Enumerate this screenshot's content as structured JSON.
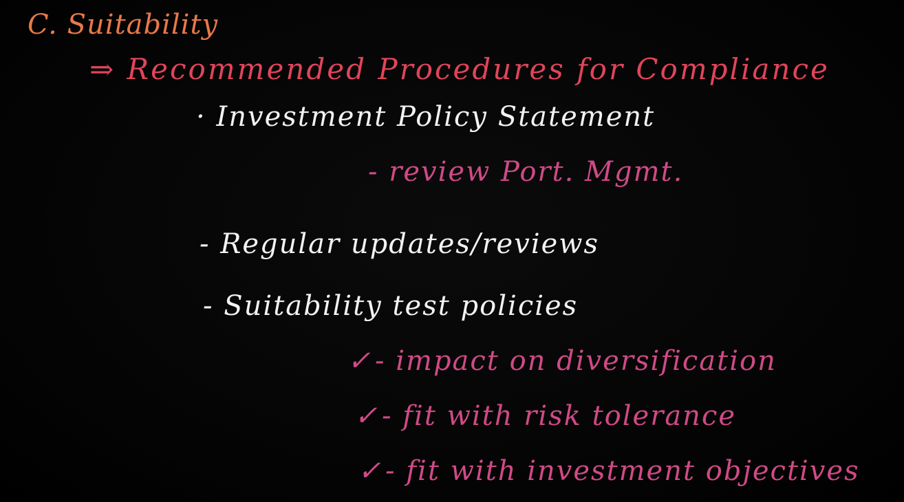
{
  "heading": "C. Suitability",
  "subheading": "⇒ Recommended Procedures for Compliance",
  "items": {
    "ips": "· Investment Policy Statement",
    "ips_sub": "- review Port. Mgmt.",
    "regular": "- Regular updates/reviews",
    "suitability": "- Suitability test policies"
  },
  "sub_items": {
    "check": "✓",
    "diversification": "- impact on diversification",
    "risk": "- fit with risk tolerance",
    "objectives": "- fit with investment objectives"
  },
  "colors": {
    "background": "#050505",
    "heading": "#e8794a",
    "subheading": "#e0455a",
    "white": "#f2f2f2",
    "pink": "#cf4a86"
  }
}
